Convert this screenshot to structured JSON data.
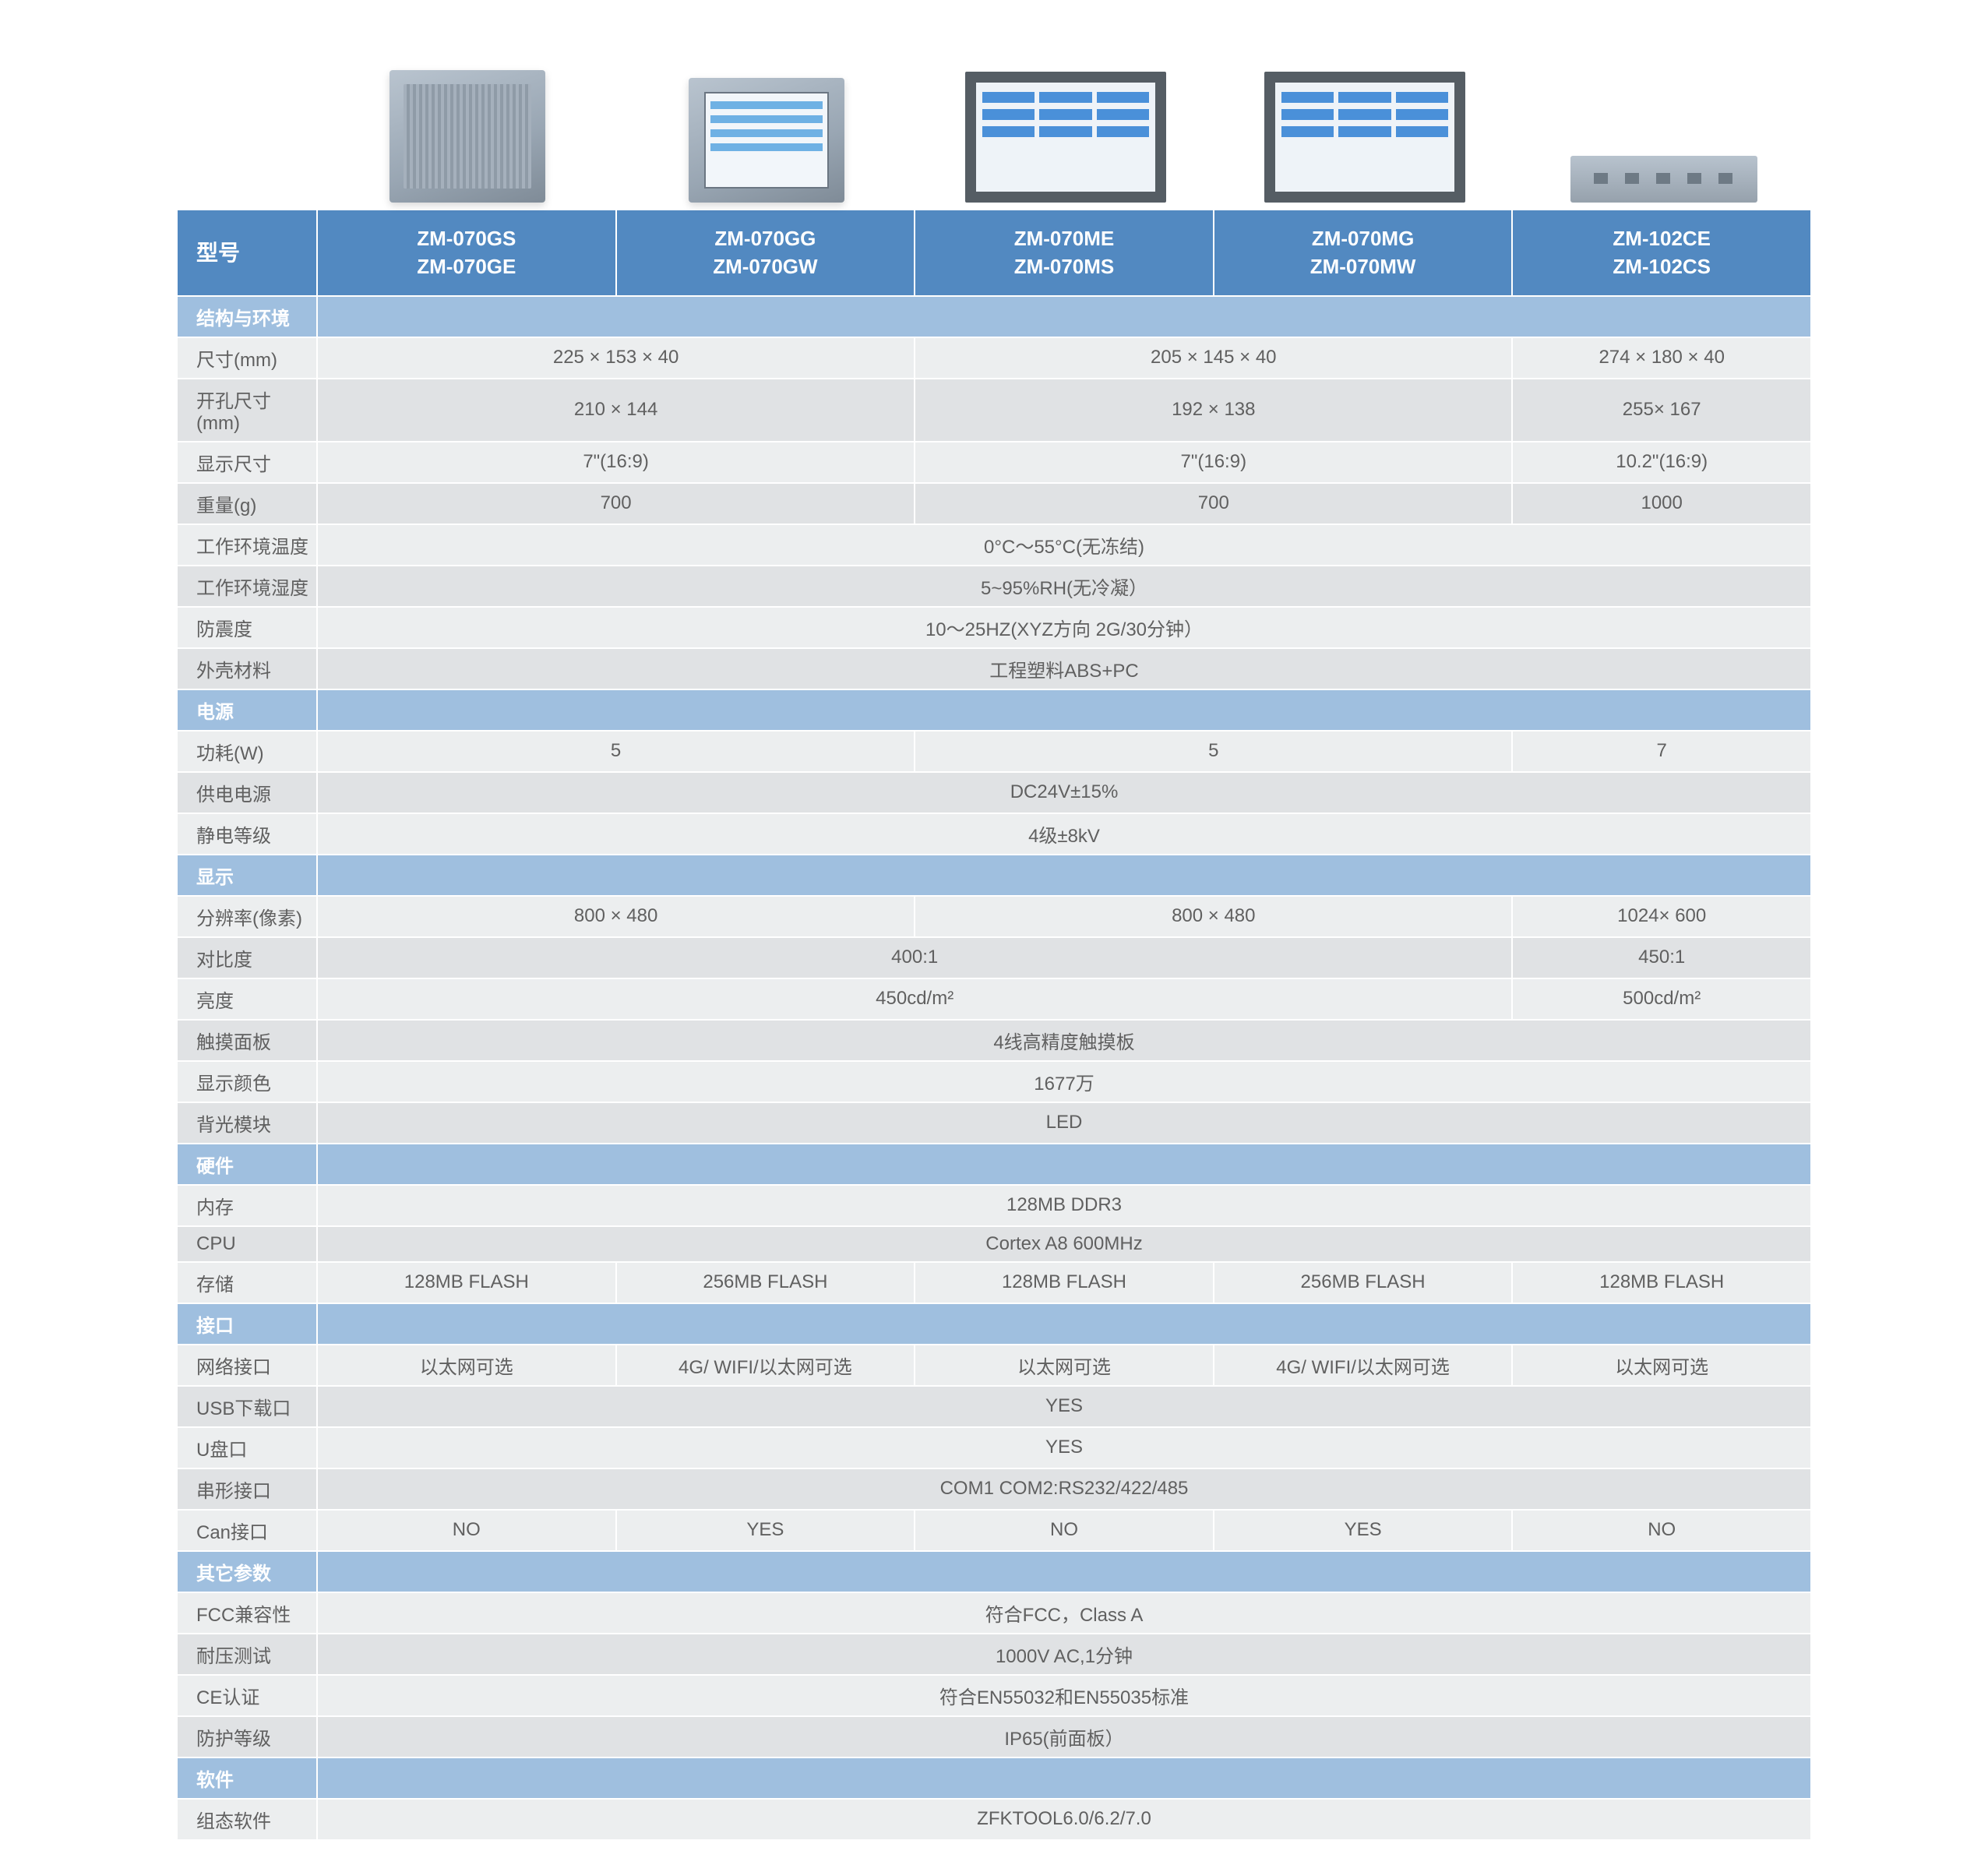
{
  "colors": {
    "header_bg": "#5289c1",
    "section_bg": "#9fbfdf",
    "row_even": "#eceeef",
    "row_odd": "#e0e2e4",
    "text": "#606060",
    "header_text": "#ffffff"
  },
  "header": {
    "label": "型号",
    "models": [
      "ZM-070GS\nZM-070GE",
      "ZM-070GG\nZM-070GW",
      "ZM-070ME\nZM-070MS",
      "ZM-070MG\nZM-070MW",
      "ZM-102CE\nZM-102CS"
    ]
  },
  "sections": [
    {
      "title": "结构与环境",
      "rows": [
        {
          "label": "尺寸(mm)",
          "cells": [
            {
              "span": 2,
              "v": "225 × 153 × 40"
            },
            {
              "span": 2,
              "v": "205 × 145 × 40"
            },
            {
              "span": 1,
              "v": "274 × 180 × 40"
            }
          ]
        },
        {
          "label": "开孔尺寸(mm)",
          "cells": [
            {
              "span": 2,
              "v": "210 × 144"
            },
            {
              "span": 2,
              "v": "192 × 138"
            },
            {
              "span": 1,
              "v": "255× 167"
            }
          ]
        },
        {
          "label": "显示尺寸",
          "cells": [
            {
              "span": 2,
              "v": "7\"(16:9)"
            },
            {
              "span": 2,
              "v": "7\"(16:9)"
            },
            {
              "span": 1,
              "v": "10.2\"(16:9)"
            }
          ]
        },
        {
          "label": "重量(g)",
          "cells": [
            {
              "span": 2,
              "v": "700"
            },
            {
              "span": 2,
              "v": "700"
            },
            {
              "span": 1,
              "v": "1000"
            }
          ]
        },
        {
          "label": "工作环境温度",
          "cells": [
            {
              "span": 5,
              "v": "0°C～55°C(无冻结)"
            }
          ]
        },
        {
          "label": "工作环境湿度",
          "cells": [
            {
              "span": 5,
              "v": "5~95%RH(无冷凝）"
            }
          ]
        },
        {
          "label": "防震度",
          "cells": [
            {
              "span": 5,
              "v": "10～25HZ(XYZ方向 2G/30分钟）"
            }
          ]
        },
        {
          "label": "外壳材料",
          "cells": [
            {
              "span": 5,
              "v": "工程塑料ABS+PC"
            }
          ]
        }
      ]
    },
    {
      "title": "电源",
      "rows": [
        {
          "label": "功耗(W)",
          "cells": [
            {
              "span": 2,
              "v": "5"
            },
            {
              "span": 2,
              "v": "5"
            },
            {
              "span": 1,
              "v": "7"
            }
          ]
        },
        {
          "label": "供电电源",
          "cells": [
            {
              "span": 5,
              "v": "DC24V±15%"
            }
          ]
        },
        {
          "label": "静电等级",
          "cells": [
            {
              "span": 5,
              "v": "4级±8kV"
            }
          ]
        }
      ]
    },
    {
      "title": "显示",
      "rows": [
        {
          "label": "分辨率(像素)",
          "cells": [
            {
              "span": 2,
              "v": "800 × 480"
            },
            {
              "span": 2,
              "v": "800 × 480"
            },
            {
              "span": 1,
              "v": "1024× 600"
            }
          ]
        },
        {
          "label": "对比度",
          "cells": [
            {
              "span": 4,
              "v": "400:1"
            },
            {
              "span": 1,
              "v": "450:1"
            }
          ]
        },
        {
          "label": "亮度",
          "cells": [
            {
              "span": 4,
              "v": "450cd/m²"
            },
            {
              "span": 1,
              "v": "500cd/m²"
            }
          ]
        },
        {
          "label": "触摸面板",
          "cells": [
            {
              "span": 5,
              "v": "4线高精度触摸板"
            }
          ]
        },
        {
          "label": "显示颜色",
          "cells": [
            {
              "span": 5,
              "v": "1677万"
            }
          ]
        },
        {
          "label": "背光模块",
          "cells": [
            {
              "span": 5,
              "v": "LED"
            }
          ]
        }
      ]
    },
    {
      "title": "硬件",
      "rows": [
        {
          "label": "内存",
          "cells": [
            {
              "span": 5,
              "v": "128MB DDR3"
            }
          ]
        },
        {
          "label": "CPU",
          "cells": [
            {
              "span": 5,
              "v": "Cortex A8 600MHz"
            }
          ]
        },
        {
          "label": "存储",
          "cells": [
            {
              "span": 1,
              "v": "128MB FLASH"
            },
            {
              "span": 1,
              "v": "256MB FLASH"
            },
            {
              "span": 1,
              "v": "128MB FLASH"
            },
            {
              "span": 1,
              "v": "256MB FLASH"
            },
            {
              "span": 1,
              "v": "128MB FLASH"
            }
          ]
        }
      ]
    },
    {
      "title": "接口",
      "rows": [
        {
          "label": "网络接口",
          "cells": [
            {
              "span": 1,
              "v": "以太网可选"
            },
            {
              "span": 1,
              "v": "4G/ WIFI/以太网可选"
            },
            {
              "span": 1,
              "v": "以太网可选"
            },
            {
              "span": 1,
              "v": "4G/ WIFI/以太网可选"
            },
            {
              "span": 1,
              "v": "以太网可选"
            }
          ]
        },
        {
          "label": "USB下载口",
          "cells": [
            {
              "span": 5,
              "v": "YES"
            }
          ]
        },
        {
          "label": "U盘口",
          "cells": [
            {
              "span": 5,
              "v": "YES"
            }
          ]
        },
        {
          "label": "串形接口",
          "cells": [
            {
              "span": 5,
              "v": "COM1  COM2:RS232/422/485"
            }
          ]
        },
        {
          "label": "Can接口",
          "cells": [
            {
              "span": 1,
              "v": "NO"
            },
            {
              "span": 1,
              "v": "YES"
            },
            {
              "span": 1,
              "v": "NO"
            },
            {
              "span": 1,
              "v": "YES"
            },
            {
              "span": 1,
              "v": "NO"
            }
          ]
        }
      ]
    },
    {
      "title": "其它参数",
      "rows": [
        {
          "label": "FCC兼容性",
          "cells": [
            {
              "span": 5,
              "v": "符合FCC，Class A"
            }
          ]
        },
        {
          "label": "耐压测试",
          "cells": [
            {
              "span": 5,
              "v": "1000V AC,1分钟"
            }
          ]
        },
        {
          "label": "CE认证",
          "cells": [
            {
              "span": 5,
              "v": "符合EN55032和EN55035标准"
            }
          ]
        },
        {
          "label": "防护等级",
          "cells": [
            {
              "span": 5,
              "v": "IP65(前面板）"
            }
          ]
        }
      ]
    },
    {
      "title": "软件",
      "rows": [
        {
          "label": "组态软件",
          "cells": [
            {
              "span": 5,
              "v": "ZFKTOOL6.0/6.2/7.0"
            }
          ]
        }
      ]
    }
  ]
}
